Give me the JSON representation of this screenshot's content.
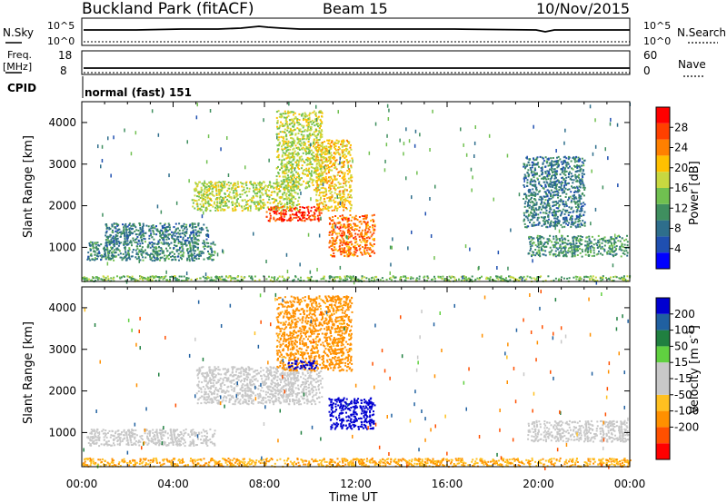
{
  "header": {
    "station": "Buckland Park (fitACF)",
    "beam": "Beam 15",
    "date": "10/Nov/2015"
  },
  "top_panels": {
    "nsky_label": "N.Sky",
    "nsky_ticks": [
      "10^5",
      "10^0"
    ],
    "nsearch_label": "N.Search",
    "nsearch_ticks": [
      "10^5",
      "10^0"
    ],
    "freq_label": "Freq.",
    "freq_unit": "[MHz]",
    "freq_ticks": [
      "18",
      "8"
    ],
    "nave_label": "Nave",
    "nave_ticks": [
      "60",
      "0"
    ],
    "cpid_label": "CPID",
    "cpid_value": "normal (fast) 151"
  },
  "colors": {
    "power_scale": [
      "#0000ff",
      "#1f4fb0",
      "#2e6e8c",
      "#3f8f5f",
      "#70c050",
      "#c8d840",
      "#ffc000",
      "#ff8000",
      "#ff4000",
      "#ff0000"
    ],
    "velocity_scale": [
      "#ff0000",
      "#ff5000",
      "#ff9000",
      "#ffc020",
      "#c8c8c8",
      "#c8c8c8",
      "#60d040",
      "#208040",
      "#2060a0",
      "#0000d0"
    ]
  },
  "chart_data": [
    {
      "type": "heatmap",
      "quantity": "power",
      "xlabel": "",
      "ylabel": "Slant Range [km]",
      "yticks": [
        "1000",
        "2000",
        "3000",
        "4000"
      ],
      "ylim": [
        180,
        4500
      ],
      "xlim": [
        0,
        24
      ],
      "colorbar_label": "Power [dB]",
      "colorbar_ticks": [
        "4",
        "8",
        "12",
        "16",
        "20",
        "24",
        "28"
      ],
      "colorbar_range": [
        0,
        32
      ],
      "features": [
        {
          "t0": 0.0,
          "t1": 24.0,
          "r0": 200,
          "r1": 330,
          "level": 14
        },
        {
          "t0": 0.2,
          "t1": 5.8,
          "r0": 700,
          "r1": 1150,
          "level": 10
        },
        {
          "t0": 1.0,
          "t1": 5.5,
          "r0": 1100,
          "r1": 1600,
          "level": 9
        },
        {
          "t0": 4.8,
          "t1": 9.5,
          "r0": 1900,
          "r1": 2600,
          "level": 17
        },
        {
          "t0": 8.0,
          "t1": 10.5,
          "r0": 1650,
          "r1": 2000,
          "level": 28
        },
        {
          "t0": 8.5,
          "t1": 10.5,
          "r0": 2400,
          "r1": 4300,
          "level": 17
        },
        {
          "t0": 10.2,
          "t1": 11.8,
          "r0": 1900,
          "r1": 3600,
          "level": 20
        },
        {
          "t0": 10.8,
          "t1": 12.8,
          "r0": 800,
          "r1": 1800,
          "level": 25
        },
        {
          "t0": 19.5,
          "t1": 23.9,
          "r0": 800,
          "r1": 1300,
          "level": 11
        },
        {
          "t0": 19.3,
          "t1": 22.0,
          "r0": 1500,
          "r1": 3200,
          "level": 9
        }
      ]
    },
    {
      "type": "heatmap",
      "quantity": "velocity",
      "xlabel": "Time UT",
      "ylabel": "Slant Range [km]",
      "xticks": [
        "00:00",
        "04:00",
        "08:00",
        "12:00",
        "16:00",
        "20:00",
        "00:00"
      ],
      "yticks": [
        "1000",
        "2000",
        "3000",
        "4000"
      ],
      "ylim": [
        180,
        4500
      ],
      "xlim": [
        0,
        24
      ],
      "colorbar_label": "Velocity [m s",
      "colorbar_unit_exp": "-1",
      "colorbar_ticks": [
        "200",
        "100",
        "50",
        "15",
        "-15",
        "-50",
        "-100",
        "-200"
      ],
      "features": [
        {
          "t0": 0.0,
          "t1": 24.0,
          "r0": 200,
          "r1": 400,
          "v": -30
        },
        {
          "t0": 0.2,
          "t1": 5.8,
          "r0": 700,
          "r1": 1100,
          "v": 0
        },
        {
          "t0": 5.0,
          "t1": 10.5,
          "r0": 1700,
          "r1": 2600,
          "v": 0
        },
        {
          "t0": 8.5,
          "t1": 11.8,
          "r0": 2500,
          "r1": 4300,
          "v": -45
        },
        {
          "t0": 9.0,
          "t1": 10.3,
          "r0": 2550,
          "r1": 2750,
          "v": 180
        },
        {
          "t0": 10.8,
          "t1": 12.8,
          "r0": 1100,
          "r1": 1850,
          "v": 190
        },
        {
          "t0": 19.5,
          "t1": 23.9,
          "r0": 800,
          "r1": 1300,
          "v": 0
        }
      ]
    }
  ]
}
